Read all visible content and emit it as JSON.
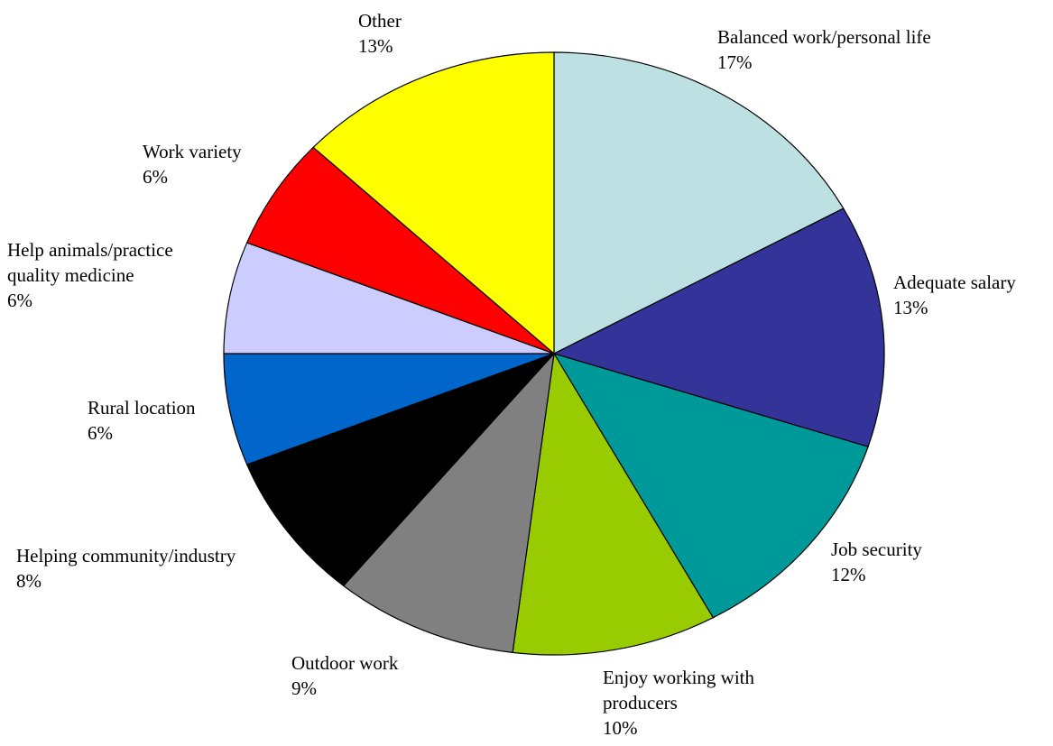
{
  "chart_data": {
    "type": "pie",
    "start_angle_deg": 90,
    "direction": "clockwise",
    "slices": [
      {
        "name_lines": [
          "Balanced work/personal life"
        ],
        "pct_label": "17%",
        "value": 17,
        "color": "#BDE1E3"
      },
      {
        "name_lines": [
          "Adequate salary"
        ],
        "pct_label": "13%",
        "value": 13,
        "color": "#333399"
      },
      {
        "name_lines": [
          "Job security"
        ],
        "pct_label": "12%",
        "value": 12,
        "color": "#009999"
      },
      {
        "name_lines": [
          "Enjoy working with",
          "producers"
        ],
        "pct_label": "10%",
        "value": 10,
        "color": "#99CC00"
      },
      {
        "name_lines": [
          "Outdoor work"
        ],
        "pct_label": "9%",
        "value": 9,
        "color": "#808080"
      },
      {
        "name_lines": [
          "Helping community/industry"
        ],
        "pct_label": "8%",
        "value": 8,
        "color": "#000000"
      },
      {
        "name_lines": [
          "Rural location"
        ],
        "pct_label": "6%",
        "value": 6,
        "color": "#0066CC"
      },
      {
        "name_lines": [
          "Help animals/practice",
          "quality medicine"
        ],
        "pct_label": "6%",
        "value": 6,
        "color": "#CCCCFF"
      },
      {
        "name_lines": [
          "Work variety"
        ],
        "pct_label": "6%",
        "value": 6,
        "color": "#FF0000"
      },
      {
        "name_lines": [
          "Other"
        ],
        "pct_label": "13%",
        "value": 13,
        "color": "#FFFF00"
      }
    ]
  }
}
